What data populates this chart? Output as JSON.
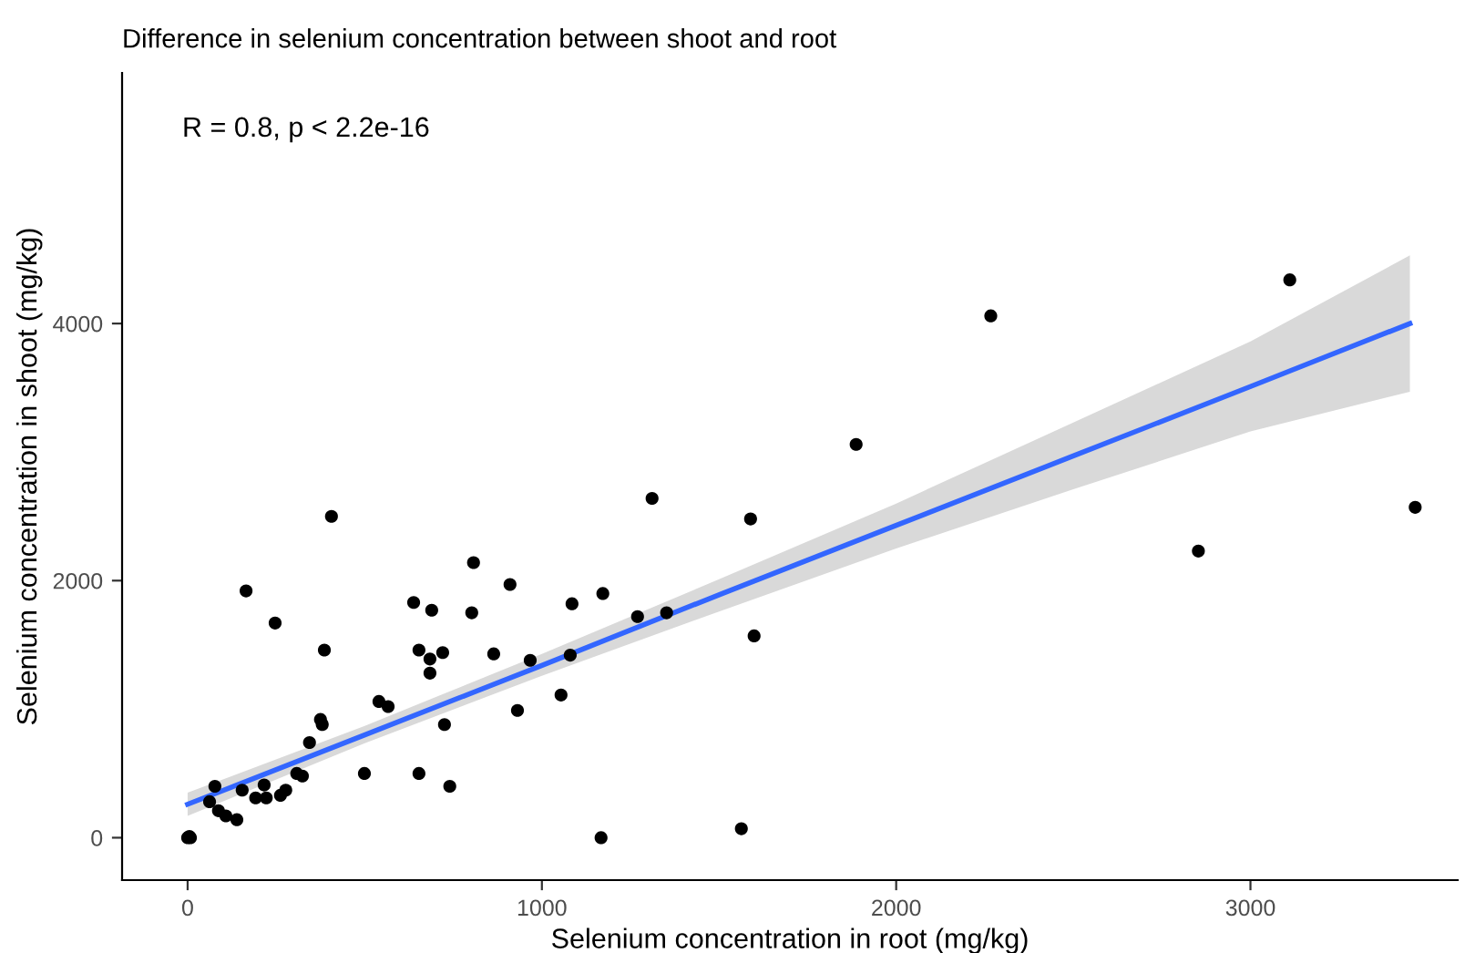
{
  "chart_data": {
    "type": "scatter",
    "title": "Difference in selenium concentration between shoot and root",
    "xlabel": "Selenium concentration in root (mg/kg)",
    "ylabel": "Selenium concentration in shoot (mg/kg)",
    "annotations": [
      "R = 0.8, p < 2.2e-16"
    ],
    "xlim": [
      -185,
      3585
    ],
    "ylim": [
      -330,
      5950
    ],
    "xticks": [
      0,
      1000,
      2000,
      3000
    ],
    "yticks": [
      0,
      2000,
      4000
    ],
    "grid": false,
    "marker": "circle",
    "series": [
      {
        "type": "line",
        "marker": "none",
        "color": "#3366ff",
        "x": [
          0,
          500,
          1000,
          1500,
          2000,
          2500,
          3000,
          3450
        ],
        "values": [
          260,
          800,
          1340,
          1890,
          2430,
          2970,
          3510,
          4000
        ],
        "lower": [
          170,
          735,
          1260,
          1760,
          2250,
          2710,
          3160,
          3470
        ],
        "upper": [
          350,
          870,
          1430,
          2010,
          2600,
          3230,
          3860,
          4530
        ]
      },
      {
        "color": "#000000",
        "x": [
          0,
          5,
          8,
          77,
          62,
          87,
          108,
          139,
          154,
          216,
          192,
          222,
          262,
          277,
          308,
          324,
          344,
          380,
          375,
          165,
          247,
          406,
          386,
          499,
          540,
          566,
          653,
          684,
          740,
          725,
          684,
          720,
          653,
          638,
          689,
          802,
          807,
          864,
          910,
          931,
          967,
          1054,
          1080,
          1085,
          1172,
          1270,
          1311,
          1352,
          1589,
          1599,
          1563,
          1167,
          1887,
          2267,
          2853,
          3111,
          3465
        ],
        "values": [
          0,
          10,
          0,
          400,
          280,
          210,
          170,
          140,
          370,
          410,
          310,
          310,
          330,
          370,
          500,
          480,
          740,
          880,
          920,
          1920,
          1670,
          2500,
          1460,
          500,
          1060,
          1020,
          500,
          1390,
          400,
          880,
          1280,
          1440,
          1460,
          1830,
          1770,
          1750,
          2140,
          1430,
          1970,
          990,
          1380,
          1110,
          1420,
          1820,
          1900,
          1720,
          2640,
          1750,
          2480,
          1570,
          70,
          0,
          3060,
          4060,
          2230,
          4340,
          2570
        ]
      }
    ]
  }
}
